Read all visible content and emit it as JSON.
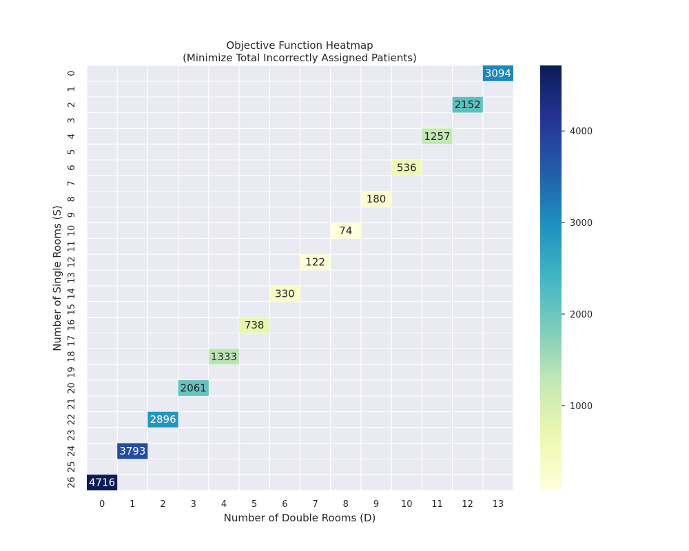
{
  "chart_data": {
    "type": "heatmap",
    "title": "Objective Function Heatmap\n(Minimize Total Incorrectly Assigned Patients)",
    "title_lines": [
      "Objective Function Heatmap",
      "(Minimize Total Incorrectly Assigned Patients)"
    ],
    "xlabel": "Number of Double Rooms (D)",
    "ylabel": "Number of Single Rooms (S)",
    "x_ticks": [
      "0",
      "1",
      "2",
      "3",
      "4",
      "5",
      "6",
      "7",
      "8",
      "9",
      "10",
      "11",
      "12",
      "13"
    ],
    "y_ticks": [
      "0",
      "1",
      "2",
      "3",
      "4",
      "5",
      "6",
      "7",
      "8",
      "9",
      "10",
      "11",
      "12",
      "13",
      "14",
      "15",
      "16",
      "17",
      "18",
      "19",
      "20",
      "21",
      "22",
      "23",
      "24",
      "25",
      "26"
    ],
    "cells": [
      {
        "d": 13,
        "s": 0,
        "value": 3094
      },
      {
        "d": 12,
        "s": 2,
        "value": 2152
      },
      {
        "d": 11,
        "s": 4,
        "value": 1257
      },
      {
        "d": 10,
        "s": 6,
        "value": 536
      },
      {
        "d": 9,
        "s": 8,
        "value": 180
      },
      {
        "d": 8,
        "s": 10,
        "value": 74
      },
      {
        "d": 7,
        "s": 12,
        "value": 122
      },
      {
        "d": 6,
        "s": 14,
        "value": 330
      },
      {
        "d": 5,
        "s": 16,
        "value": 738
      },
      {
        "d": 4,
        "s": 18,
        "value": 1333
      },
      {
        "d": 3,
        "s": 20,
        "value": 2061
      },
      {
        "d": 2,
        "s": 22,
        "value": 2896
      },
      {
        "d": 1,
        "s": 24,
        "value": 3793
      },
      {
        "d": 0,
        "s": 26,
        "value": 4716
      }
    ],
    "colorbar": {
      "colormap": "YlGnBu",
      "vmin": 74,
      "vmax": 4716,
      "ticks": [
        1000,
        2000,
        3000,
        4000
      ]
    },
    "grid": true,
    "background_color": "#eaeaf2"
  }
}
